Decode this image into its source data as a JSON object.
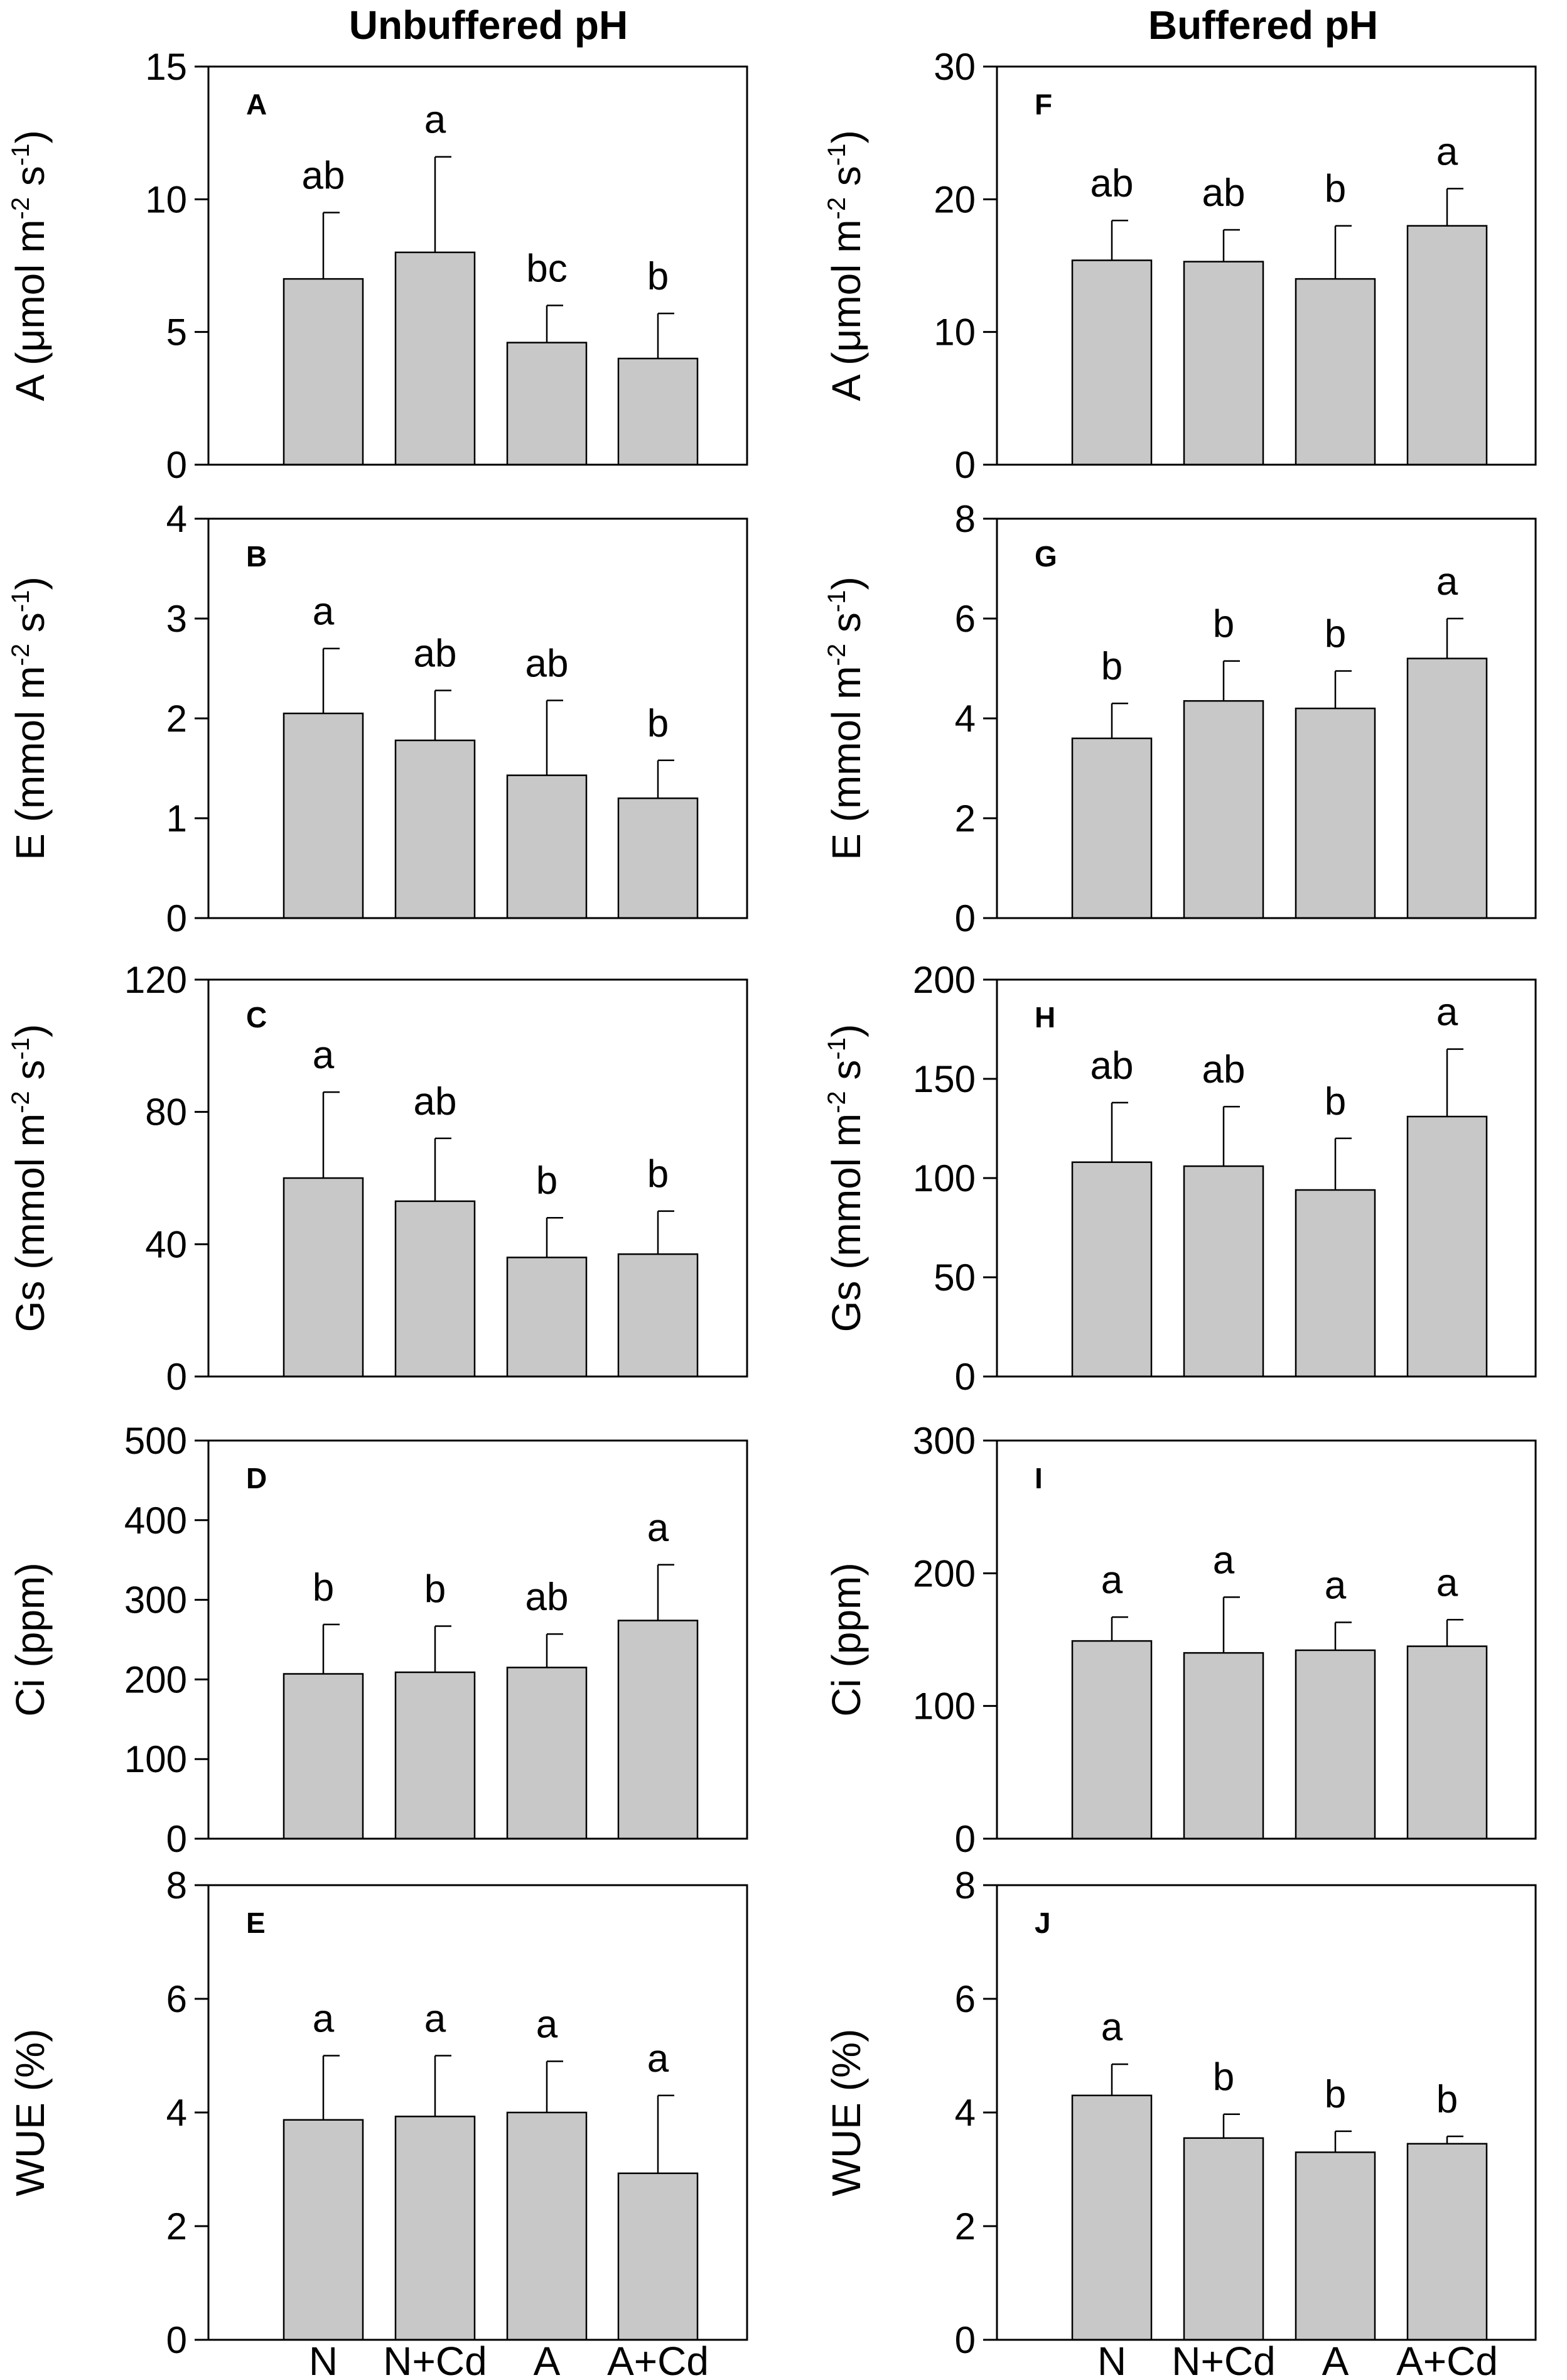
{
  "column_titles": {
    "left": "Unbuffered pH",
    "right": "Buffered pH"
  },
  "categories": [
    "N",
    "N+Cd",
    "A",
    "A+Cd"
  ],
  "chart_data": [
    {
      "type": "bar",
      "column": "left",
      "panel_label": "A",
      "ylabel": {
        "main": "A (μmol m",
        "exp1": "-2",
        "mid": " s",
        "exp2": "-1",
        "end": ")"
      },
      "ylim": [
        0,
        15
      ],
      "yticks": [
        0,
        5,
        10,
        15
      ],
      "categories": [
        "N",
        "N+Cd",
        "A",
        "A+Cd"
      ],
      "values": [
        7.0,
        8.0,
        4.6,
        4.0
      ],
      "errors": [
        2.5,
        3.6,
        1.4,
        1.7
      ],
      "significance": [
        "ab",
        "a",
        "bc",
        "b"
      ]
    },
    {
      "type": "bar",
      "column": "left",
      "panel_label": "B",
      "ylabel": {
        "main": "E (mmol m",
        "exp1": "-2",
        "mid": " s",
        "exp2": "-1",
        "end": ")"
      },
      "ylim": [
        0,
        4
      ],
      "yticks": [
        0,
        1,
        2,
        3,
        4
      ],
      "categories": [
        "N",
        "N+Cd",
        "A",
        "A+Cd"
      ],
      "values": [
        2.05,
        1.78,
        1.43,
        1.2
      ],
      "errors": [
        0.65,
        0.5,
        0.75,
        0.38
      ],
      "significance": [
        "a",
        "ab",
        "ab",
        "b"
      ]
    },
    {
      "type": "bar",
      "column": "left",
      "panel_label": "C",
      "ylabel": {
        "main": "Gs (mmol m",
        "exp1": "-2",
        "mid": " s",
        "exp2": "-1",
        "end": ")"
      },
      "ylim": [
        0,
        120
      ],
      "yticks": [
        0,
        40,
        80,
        120
      ],
      "categories": [
        "N",
        "N+Cd",
        "A",
        "A+Cd"
      ],
      "values": [
        60,
        53,
        36,
        37
      ],
      "errors": [
        26,
        19,
        12,
        13
      ],
      "significance": [
        "a",
        "ab",
        "b",
        "b"
      ]
    },
    {
      "type": "bar",
      "column": "left",
      "panel_label": "D",
      "ylabel": {
        "main": "Ci (ppm)"
      },
      "ylim": [
        0,
        500
      ],
      "yticks": [
        0,
        100,
        200,
        300,
        400,
        500
      ],
      "categories": [
        "N",
        "N+Cd",
        "A",
        "A+Cd"
      ],
      "values": [
        207,
        209,
        215,
        274
      ],
      "errors": [
        62,
        58,
        42,
        70
      ],
      "significance": [
        "b",
        "b",
        "ab",
        "a"
      ]
    },
    {
      "type": "bar",
      "column": "left",
      "panel_label": "E",
      "ylabel": {
        "main": "WUE (%)"
      },
      "ylim": [
        0,
        8
      ],
      "yticks": [
        0,
        2,
        4,
        6,
        8
      ],
      "categories": [
        "N",
        "N+Cd",
        "A",
        "A+Cd"
      ],
      "values": [
        3.87,
        3.93,
        4.0,
        2.93
      ],
      "errors": [
        1.13,
        1.07,
        0.9,
        1.37
      ],
      "significance": [
        "a",
        "a",
        "a",
        "a"
      ]
    },
    {
      "type": "bar",
      "column": "right",
      "panel_label": "F",
      "ylabel": {
        "main": "A (μmol m",
        "exp1": "-2",
        "mid": " s",
        "exp2": "-1",
        "end": ")"
      },
      "ylim": [
        0,
        30
      ],
      "yticks": [
        0,
        10,
        20,
        30
      ],
      "categories": [
        "N",
        "N+Cd",
        "A",
        "A+Cd"
      ],
      "values": [
        15.4,
        15.3,
        14.0,
        18.0
      ],
      "errors": [
        3.0,
        2.4,
        4.0,
        2.8
      ],
      "significance": [
        "ab",
        "ab",
        "b",
        "a"
      ]
    },
    {
      "type": "bar",
      "column": "right",
      "panel_label": "G",
      "ylabel": {
        "main": "E (mmol m",
        "exp1": "-2",
        "mid": " s",
        "exp2": "-1",
        "end": ")"
      },
      "ylim": [
        0,
        8
      ],
      "yticks": [
        0,
        2,
        4,
        6,
        8
      ],
      "categories": [
        "N",
        "N+Cd",
        "A",
        "A+Cd"
      ],
      "values": [
        3.6,
        4.35,
        4.2,
        5.2
      ],
      "errors": [
        0.7,
        0.8,
        0.75,
        0.8
      ],
      "significance": [
        "b",
        "b",
        "b",
        "a"
      ]
    },
    {
      "type": "bar",
      "column": "right",
      "panel_label": "H",
      "ylabel": {
        "main": "Gs (mmol m",
        "exp1": "-2",
        "mid": " s",
        "exp2": "-1",
        "end": ")"
      },
      "ylim": [
        0,
        200
      ],
      "yticks": [
        0,
        50,
        100,
        150,
        200
      ],
      "categories": [
        "N",
        "N+Cd",
        "A",
        "A+Cd"
      ],
      "values": [
        108,
        106,
        94,
        131
      ],
      "errors": [
        30,
        30,
        26,
        34
      ],
      "significance": [
        "ab",
        "ab",
        "b",
        "a"
      ]
    },
    {
      "type": "bar",
      "column": "right",
      "panel_label": "I",
      "ylabel": {
        "main": "Ci (ppm)"
      },
      "ylim": [
        0,
        300
      ],
      "yticks": [
        0,
        100,
        200,
        300
      ],
      "categories": [
        "N",
        "N+Cd",
        "A",
        "A+Cd"
      ],
      "values": [
        149,
        140,
        142,
        145
      ],
      "errors": [
        18,
        42,
        21,
        20
      ],
      "significance": [
        "a",
        "a",
        "a",
        "a"
      ]
    },
    {
      "type": "bar",
      "column": "right",
      "panel_label": "J",
      "ylabel": {
        "main": "WUE (%)"
      },
      "ylim": [
        0,
        8
      ],
      "yticks": [
        0,
        2,
        4,
        6,
        8
      ],
      "categories": [
        "N",
        "N+Cd",
        "A",
        "A+Cd"
      ],
      "values": [
        4.3,
        3.55,
        3.3,
        3.45
      ],
      "errors": [
        0.55,
        0.42,
        0.37,
        0.13
      ],
      "significance": [
        "a",
        "b",
        "b",
        "b"
      ]
    }
  ]
}
